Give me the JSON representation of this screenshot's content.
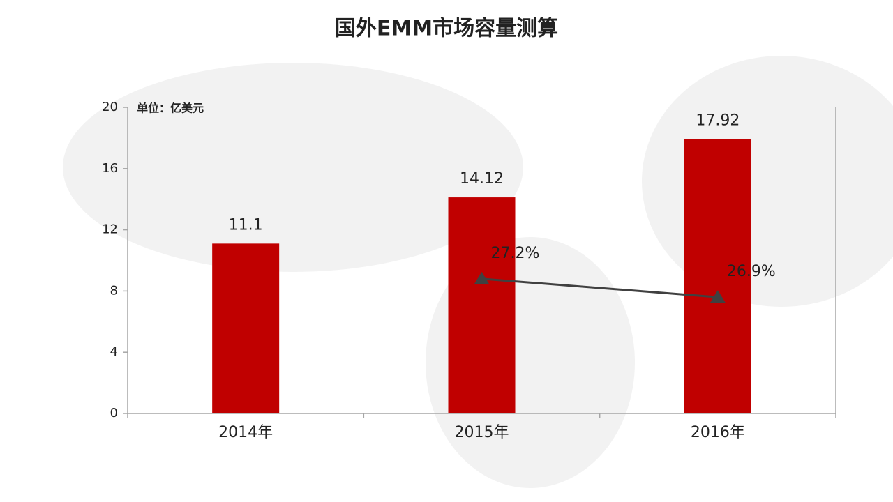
{
  "chart_data": {
    "type": "bar",
    "title": "国外EMM市场容量测算",
    "annotation": "单位：亿美元",
    "categories": [
      "2014年",
      "2015年",
      "2016年"
    ],
    "series": [
      {
        "type": "bar",
        "color": "#c00000",
        "values": [
          11.1,
          14.12,
          17.92
        ]
      },
      {
        "type": "line",
        "axis": "y2",
        "color": "#404040",
        "values": [
          null,
          27.2,
          26.9
        ],
        "value_labels": [
          null,
          "27.2%",
          "26.9%"
        ]
      }
    ],
    "ylim": [
      0,
      20
    ],
    "yticks": [
      0,
      4,
      8,
      12,
      16,
      20
    ],
    "y2lim": [
      25,
      30
    ],
    "grid": false
  }
}
